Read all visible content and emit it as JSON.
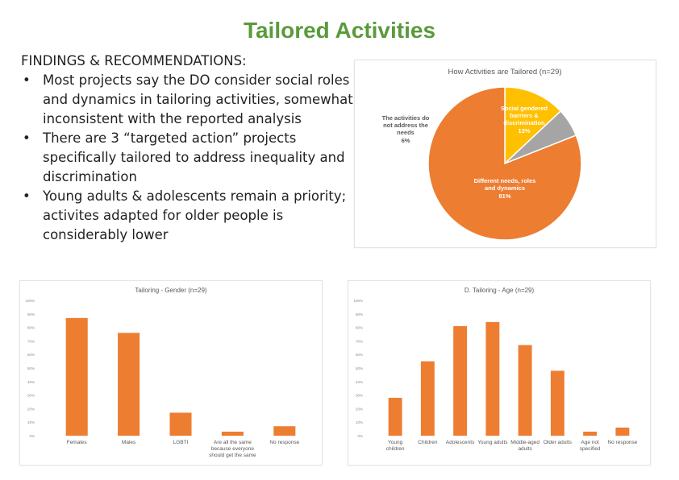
{
  "slide": {
    "title": "Tailored Activities",
    "findings": {
      "heading": "FINDINGS & RECOMMENDATIONS:",
      "bullets": [
        "Most projects say the DO consider social roles and dynamics in tailoring activities, somewhat inconsistent with the reported analysis",
        "There are 3 “targeted action” projects specifically tailored to address inequality and discrimination",
        "Young adults & adolescents remain a priority; activites adapted for older people is considerably lower"
      ]
    }
  },
  "chart_data": [
    {
      "type": "pie",
      "title": "How Activities are Tailored (n=29)",
      "labels": [
        "Social gendered barriers & discrimination",
        "The activities do not address the needs",
        "Different needs, roles and dynamics"
      ],
      "values": [
        13,
        6,
        81
      ],
      "value_labels": [
        "13%",
        "6%",
        "81%"
      ],
      "colors": [
        "#ffc000",
        "#a5a5a5",
        "#ed7d31"
      ]
    },
    {
      "type": "bar",
      "title": "Tailoring - Gender (n=29)",
      "categories": [
        "Females",
        "Males",
        "LGBTI",
        "Are all the same because everyone should get the same",
        "No response"
      ],
      "values": [
        87,
        76,
        17,
        3,
        7
      ],
      "ylim": [
        0,
        100
      ],
      "yticks": [
        "0%",
        "10%",
        "20%",
        "30%",
        "40%",
        "50%",
        "60%",
        "70%",
        "80%",
        "90%",
        "100%"
      ],
      "color": "#ed7d31",
      "grid": false
    },
    {
      "type": "bar",
      "title": "D. Tailoring - Age (n=29)",
      "categories": [
        "Young children",
        "Children",
        "Adolescents",
        "Young adults",
        "Middle-aged adults",
        "Older adults",
        "Age not specified",
        "No response"
      ],
      "values": [
        28,
        55,
        81,
        84,
        67,
        48,
        3,
        6
      ],
      "ylim": [
        0,
        100
      ],
      "yticks": [
        "0%",
        "10%",
        "20%",
        "30%",
        "40%",
        "50%",
        "60%",
        "70%",
        "80%",
        "90%",
        "100%"
      ],
      "color": "#ed7d31",
      "grid": false
    }
  ]
}
